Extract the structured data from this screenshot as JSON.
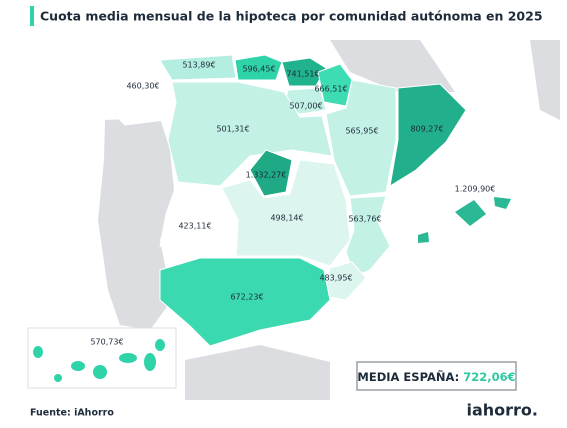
{
  "title": "Cuota media mensual de la hipoteca por comunidad autónoma en 2025",
  "regions": [
    {
      "label": "460,30€"
    },
    {
      "label": "513,89€"
    },
    {
      "label": "596,45€"
    },
    {
      "label": "741,51€"
    },
    {
      "label": "666,51€"
    },
    {
      "label": "507,00€"
    },
    {
      "label": "501,31€"
    },
    {
      "label": "565,95€"
    },
    {
      "label": "809,27€"
    },
    {
      "label": "1.332,27€"
    },
    {
      "label": "1.209,90€"
    },
    {
      "label": "423,11€"
    },
    {
      "label": "498,14€"
    },
    {
      "label": "563,76€"
    },
    {
      "label": "483,95€"
    },
    {
      "label": "672,23€"
    },
    {
      "label": "570,73€"
    }
  ],
  "summary": {
    "label": "MEDIA ESPAÑA:",
    "value": "722,06€"
  },
  "source": "Fuente: iAhorro",
  "logo": "iahorro."
}
